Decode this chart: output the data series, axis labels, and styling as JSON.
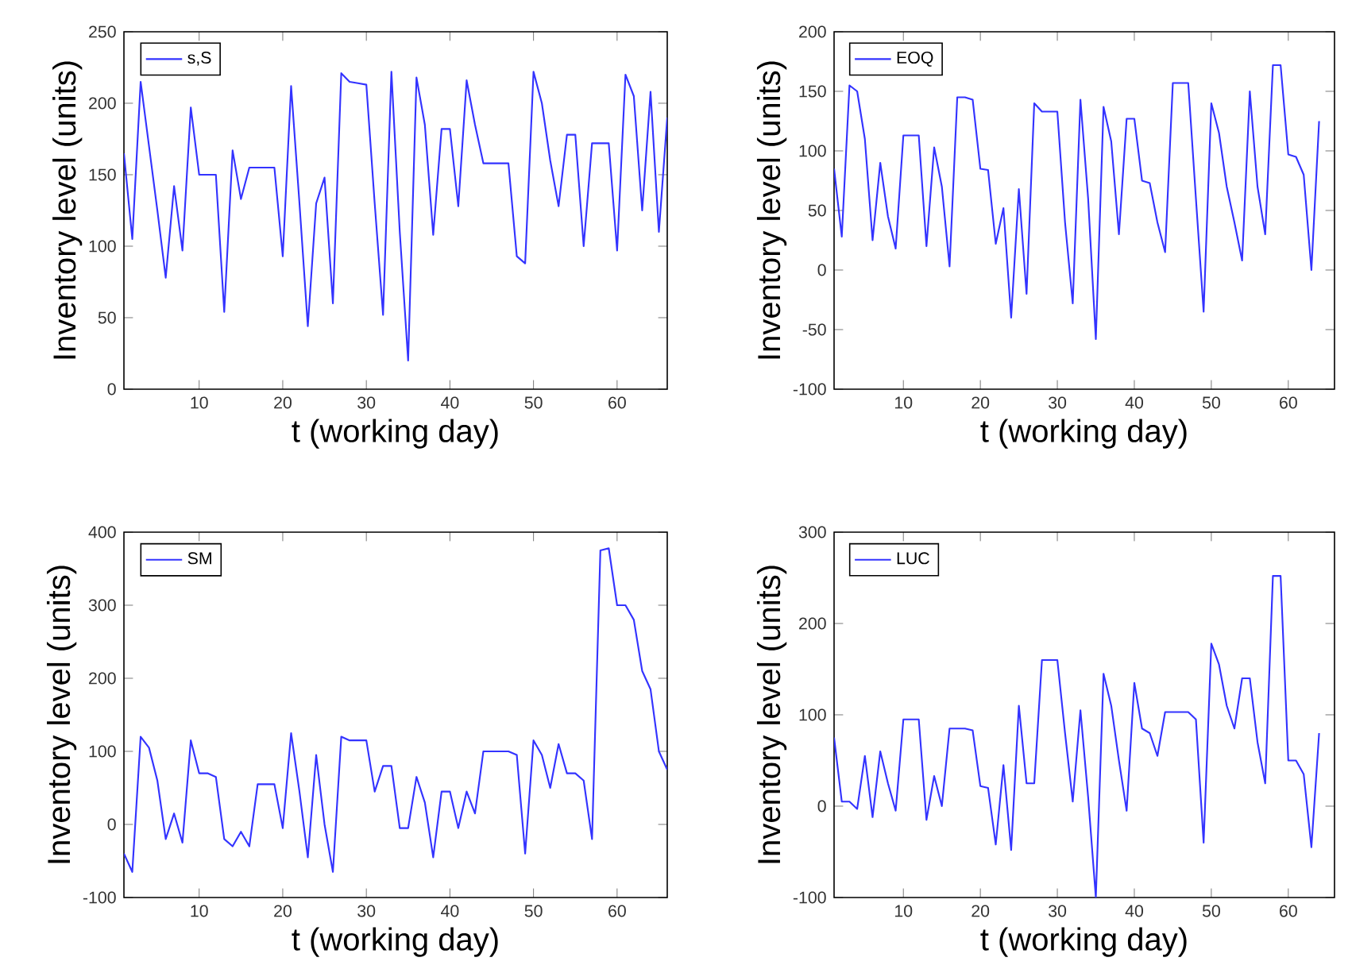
{
  "chart_data": [
    {
      "type": "line",
      "xlabel": "t (working day)",
      "ylabel": "Inventory level (units)",
      "xlim": [
        1,
        66
      ],
      "xticks": [
        10,
        20,
        30,
        40,
        50,
        60
      ],
      "ylim": [
        0,
        250
      ],
      "yticks": [
        0,
        50,
        100,
        150,
        200,
        250
      ],
      "legend": "top left",
      "grid": false,
      "x": [
        1,
        2,
        3,
        4,
        5,
        6,
        7,
        8,
        9,
        10,
        11,
        12,
        13,
        14,
        15,
        16,
        17,
        18,
        19,
        20,
        21,
        22,
        23,
        24,
        25,
        26,
        27,
        28,
        29,
        30,
        31,
        32,
        33,
        34,
        35,
        36,
        37,
        38,
        39,
        40,
        41,
        42,
        43,
        44,
        45,
        46,
        47,
        48,
        49,
        50,
        51,
        52,
        53,
        54,
        55,
        56,
        57,
        58,
        59,
        60,
        61,
        62,
        63,
        64,
        65,
        66
      ],
      "series": [
        {
          "name": "s,S",
          "color": "#3333ff",
          "values": [
            165,
            105,
            215,
            170,
            125,
            78,
            142,
            97,
            197,
            150,
            150,
            150,
            54,
            167,
            133,
            155,
            155,
            155,
            155,
            93,
            212,
            130,
            44,
            130,
            148,
            60,
            221,
            215,
            214,
            213,
            130,
            52,
            222,
            110,
            20,
            218,
            185,
            108,
            182,
            182,
            128,
            216,
            185,
            158,
            158,
            158,
            158,
            93,
            88,
            222,
            200,
            160,
            128,
            178,
            178,
            100,
            172,
            172,
            172,
            97,
            220,
            205,
            125,
            208,
            110,
            190
          ]
        }
      ]
    },
    {
      "type": "line",
      "xlabel": "t (working day)",
      "ylabel": "Inventory level (units)",
      "xlim": [
        1,
        66
      ],
      "xticks": [
        10,
        20,
        30,
        40,
        50,
        60
      ],
      "ylim": [
        -100,
        200
      ],
      "yticks": [
        -100,
        -50,
        0,
        50,
        100,
        150,
        200
      ],
      "legend": "top left",
      "grid": false,
      "x": [
        1,
        2,
        3,
        4,
        5,
        6,
        7,
        8,
        9,
        10,
        11,
        12,
        13,
        14,
        15,
        16,
        17,
        18,
        19,
        20,
        21,
        22,
        23,
        24,
        25,
        26,
        27,
        28,
        29,
        30,
        31,
        32,
        33,
        34,
        35,
        36,
        37,
        38,
        39,
        40,
        41,
        42,
        43,
        44,
        45,
        46,
        47,
        48,
        49,
        50,
        51,
        52,
        53,
        54,
        55,
        56,
        57,
        58,
        59,
        60,
        61,
        62,
        63,
        64
      ],
      "series": [
        {
          "name": "EOQ",
          "color": "#3333ff",
          "values": [
            85,
            28,
            155,
            150,
            110,
            25,
            90,
            45,
            18,
            113,
            113,
            113,
            20,
            103,
            70,
            3,
            145,
            145,
            143,
            85,
            84,
            22,
            52,
            -40,
            68,
            -20,
            140,
            133,
            133,
            133,
            40,
            -28,
            143,
            60,
            -58,
            137,
            108,
            30,
            127,
            127,
            75,
            73,
            40,
            15,
            157,
            157,
            157,
            60,
            -35,
            140,
            115,
            70,
            40,
            8,
            150,
            70,
            30,
            172,
            172,
            97,
            95,
            80,
            0,
            125
          ]
        }
      ]
    },
    {
      "type": "line",
      "xlabel": "t (working day)",
      "ylabel": "Inventory level (units)",
      "xlim": [
        1,
        66
      ],
      "xticks": [
        10,
        20,
        30,
        40,
        50,
        60
      ],
      "ylim": [
        -100,
        400
      ],
      "yticks": [
        -100,
        0,
        100,
        200,
        300,
        400
      ],
      "legend": "top left",
      "grid": false,
      "x": [
        1,
        2,
        3,
        4,
        5,
        6,
        7,
        8,
        9,
        10,
        11,
        12,
        13,
        14,
        15,
        16,
        17,
        18,
        19,
        20,
        21,
        22,
        23,
        24,
        25,
        26,
        27,
        28,
        29,
        30,
        31,
        32,
        33,
        34,
        35,
        36,
        37,
        38,
        39,
        40,
        41,
        42,
        43,
        44,
        45,
        46,
        47,
        48,
        49,
        50,
        51,
        52,
        53,
        54,
        55,
        56,
        57,
        58,
        59,
        60,
        61,
        62,
        63,
        64,
        65,
        66
      ],
      "series": [
        {
          "name": "SM",
          "color": "#3333ff",
          "values": [
            -40,
            -65,
            120,
            105,
            60,
            -20,
            15,
            -25,
            115,
            70,
            70,
            65,
            -20,
            -30,
            -10,
            -30,
            55,
            55,
            55,
            -5,
            125,
            45,
            -45,
            95,
            0,
            -65,
            120,
            115,
            115,
            115,
            45,
            80,
            80,
            -5,
            -5,
            65,
            30,
            -45,
            45,
            45,
            -5,
            45,
            15,
            100,
            100,
            100,
            100,
            95,
            -40,
            115,
            95,
            50,
            110,
            70,
            70,
            60,
            -20,
            375,
            378,
            300,
            300,
            280,
            210,
            185,
            100,
            75
          ]
        }
      ]
    },
    {
      "type": "line",
      "xlabel": "t (working day)",
      "ylabel": "Inventory level (units)",
      "xlim": [
        1,
        66
      ],
      "xticks": [
        10,
        20,
        30,
        40,
        50,
        60
      ],
      "ylim": [
        -100,
        300
      ],
      "yticks": [
        -100,
        0,
        100,
        200,
        300
      ],
      "legend": "top left",
      "grid": false,
      "x": [
        1,
        2,
        3,
        4,
        5,
        6,
        7,
        8,
        9,
        10,
        11,
        12,
        13,
        14,
        15,
        16,
        17,
        18,
        19,
        20,
        21,
        22,
        23,
        24,
        25,
        26,
        27,
        28,
        29,
        30,
        31,
        32,
        33,
        34,
        35,
        36,
        37,
        38,
        39,
        40,
        41,
        42,
        43,
        44,
        45,
        46,
        47,
        48,
        49,
        50,
        51,
        52,
        53,
        54,
        55,
        56,
        57,
        58,
        59,
        60,
        61,
        62,
        63,
        64
      ],
      "series": [
        {
          "name": "LUC",
          "color": "#3333ff",
          "values": [
            75,
            5,
            5,
            -3,
            55,
            -12,
            60,
            25,
            -5,
            95,
            95,
            95,
            -15,
            33,
            0,
            85,
            85,
            85,
            83,
            22,
            20,
            -42,
            45,
            -48,
            110,
            25,
            25,
            160,
            160,
            160,
            80,
            5,
            105,
            10,
            -100,
            145,
            110,
            50,
            -5,
            135,
            85,
            80,
            55,
            103,
            103,
            103,
            103,
            95,
            -40,
            178,
            155,
            110,
            85,
            140,
            140,
            70,
            25,
            252,
            252,
            50,
            50,
            35,
            -45,
            80
          ]
        }
      ]
    }
  ]
}
